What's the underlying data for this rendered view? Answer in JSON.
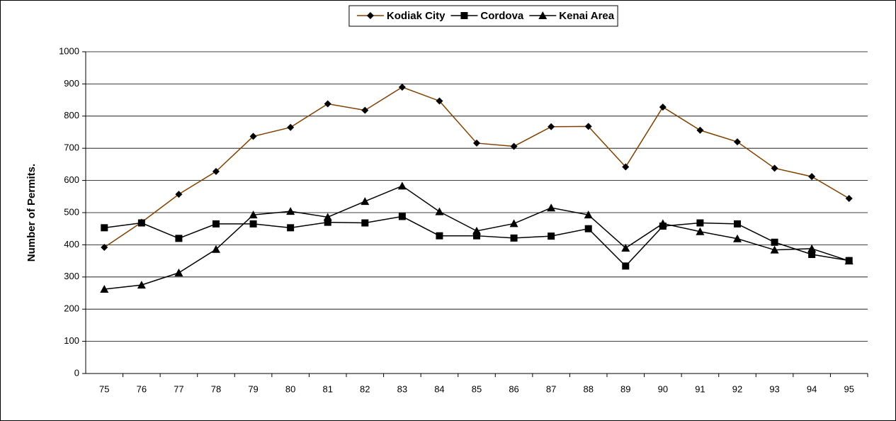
{
  "chart_data": {
    "type": "line",
    "y_label": "Number of Permits.",
    "categories": [
      "75",
      "76",
      "77",
      "78",
      "79",
      "80",
      "81",
      "82",
      "83",
      "84",
      "85",
      "86",
      "87",
      "88",
      "89",
      "90",
      "91",
      "92",
      "93",
      "94",
      "95"
    ],
    "series": [
      {
        "name": "Kodiak City",
        "color": "#804000",
        "marker": "diamond",
        "marker_color": "#000000",
        "values": [
          392,
          470,
          557,
          628,
          737,
          765,
          838,
          818,
          890,
          847,
          716,
          706,
          767,
          768,
          642,
          828,
          756,
          720,
          638,
          612,
          544
        ]
      },
      {
        "name": "Cordova",
        "color": "#000000",
        "marker": "square",
        "marker_color": "#000000",
        "values": [
          453,
          468,
          420,
          465,
          465,
          453,
          470,
          468,
          488,
          428,
          428,
          421,
          427,
          450,
          334,
          458,
          468,
          465,
          408,
          370,
          351
        ]
      },
      {
        "name": "Kenai Area",
        "color": "#000000",
        "marker": "triangle",
        "marker_color": "#000000",
        "values": [
          262,
          275,
          313,
          386,
          493,
          504,
          486,
          535,
          583,
          503,
          443,
          466,
          515,
          493,
          390,
          466,
          441,
          419,
          384,
          388,
          350
        ]
      }
    ],
    "ylim": [
      0,
      1000
    ],
    "yticks": [
      0,
      100,
      200,
      300,
      400,
      500,
      600,
      700,
      800,
      900,
      1000
    ],
    "grid": true,
    "legend": "top"
  }
}
